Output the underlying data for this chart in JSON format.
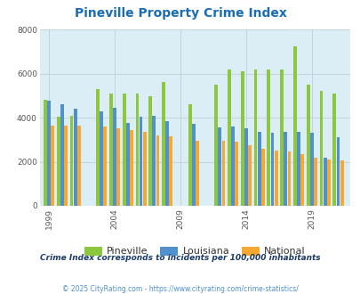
{
  "title": "Pineville Property Crime Index",
  "title_color": "#1a6db5",
  "subtitle": "Crime Index corresponds to incidents per 100,000 inhabitants",
  "footer": "© 2025 CityRating.com - https://www.cityrating.com/crime-statistics/",
  "bg_color": "#dceef5",
  "fig_bg_color": "#ffffff",
  "bar_colors": [
    "#8dc63f",
    "#4f90cd",
    "#f7a833"
  ],
  "legend_labels": [
    "Pineville",
    "Louisiana",
    "National"
  ],
  "years": [
    1999,
    2000,
    2001,
    2003,
    2004,
    2005,
    2006,
    2007,
    2008,
    2010,
    2012,
    2013,
    2014,
    2015,
    2016,
    2017,
    2018,
    2019,
    2020,
    2021
  ],
  "pineville": [
    4800,
    4050,
    4100,
    5300,
    5100,
    5100,
    5100,
    4950,
    5600,
    4600,
    5500,
    6200,
    6100,
    6200,
    6200,
    6200,
    7250,
    5500,
    5200,
    5100
  ],
  "louisiana": [
    4750,
    4600,
    4400,
    4300,
    4450,
    3750,
    4050,
    4100,
    3850,
    3700,
    3550,
    3600,
    3500,
    3350,
    3300,
    3350,
    3350,
    3300,
    2200,
    3100
  ],
  "national": [
    3650,
    3650,
    3650,
    3600,
    3500,
    3450,
    3350,
    3200,
    3150,
    2950,
    2950,
    2900,
    2750,
    2600,
    2500,
    2450,
    2350,
    2200,
    2100,
    2050
  ],
  "ylim": [
    0,
    8000
  ],
  "yticks": [
    0,
    2000,
    4000,
    6000,
    8000
  ],
  "tick_label_color": "#555555",
  "grid_color": "#c0d0d8",
  "subtitle_color": "#1a3a6a",
  "footer_color": "#4f90cd"
}
